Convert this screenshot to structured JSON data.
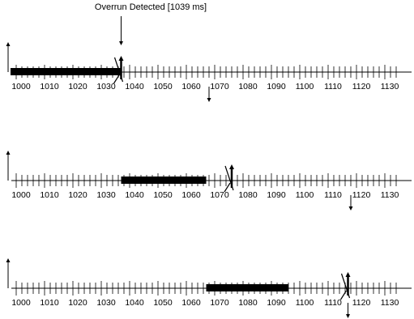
{
  "title": "Overrun Detected [1039 ms]",
  "axis": {
    "min": 996,
    "max": 1135,
    "minor_tick": 2,
    "labels": [
      "1000",
      "1010",
      "1020",
      "1030",
      "1040",
      "1050",
      "1060",
      "1070",
      "1080",
      "1090",
      "1100",
      "1110",
      "1120",
      "1130"
    ]
  },
  "timelines": [
    {
      "name": "timeline-1",
      "bar": [
        998,
        1037
      ],
      "release": 996,
      "deadline": 1037,
      "now": 1037,
      "down_marker": 1068
    },
    {
      "name": "timeline-2",
      "bar": [
        1037,
        1067
      ],
      "release": 996,
      "deadline": 1076,
      "now": 1076,
      "down_marker": 1118
    },
    {
      "name": "timeline-3",
      "bar": [
        1067,
        1096
      ],
      "release": 996,
      "deadline": 1117,
      "now": 1117,
      "down_marker": 1117
    }
  ],
  "colors": {
    "ink": "#000000",
    "bar": "#000000"
  }
}
